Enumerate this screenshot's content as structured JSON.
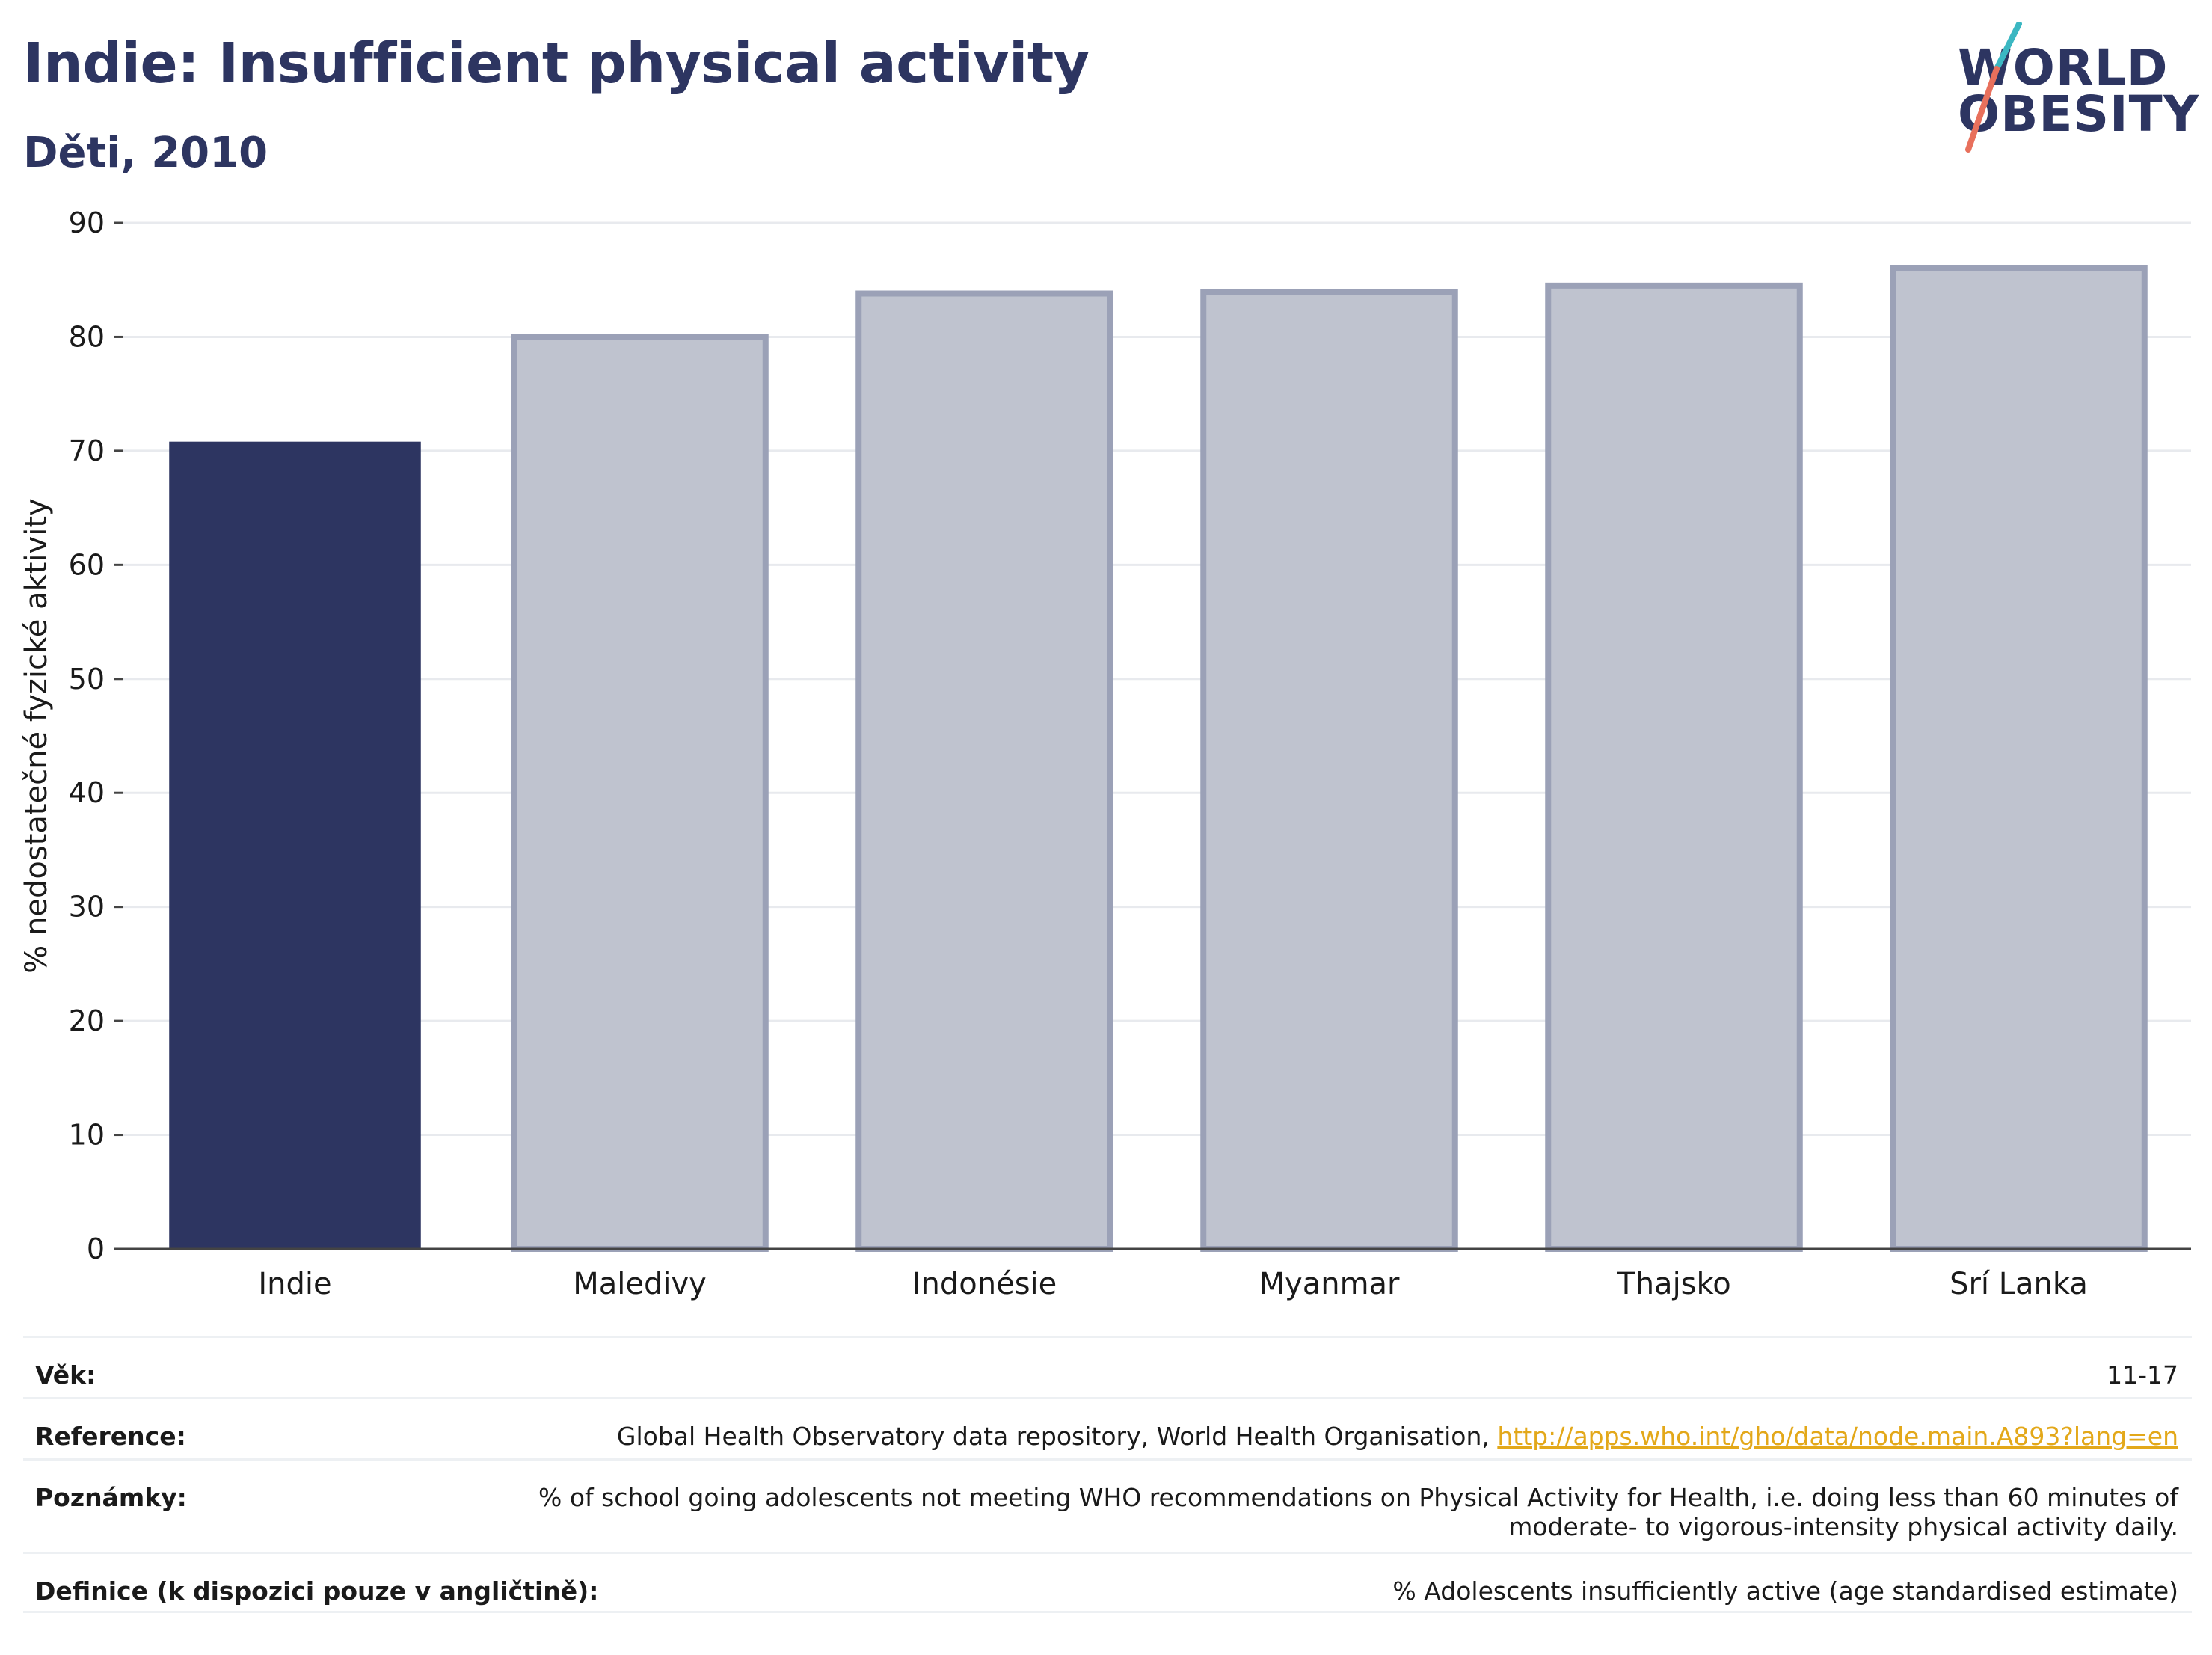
{
  "header": {
    "title": "Indie: Insufficient physical activity",
    "subtitle": "Děti, 2010"
  },
  "logo": {
    "line1": "WORLD",
    "line2": "OBESITY"
  },
  "chart_data": {
    "type": "bar",
    "categories": [
      "Indie",
      "Maledivy",
      "Indonésie",
      "Myanmar",
      "Thajsko",
      "Srí Lanka"
    ],
    "values": [
      70.8,
      80.0,
      83.8,
      83.9,
      84.5,
      86.0
    ],
    "highlight": "Indie",
    "ylabel": "% nedostatečné fyzické aktivity",
    "xlabel": "",
    "ylim": [
      0,
      90
    ],
    "yticks": [
      0,
      10,
      20,
      30,
      40,
      50,
      60,
      70,
      80,
      90
    ],
    "grid": true,
    "colors": {
      "highlight": "#2d3561",
      "other": "#bfc3cf",
      "other_border": "#9ba1b7"
    }
  },
  "info": {
    "age_label": "Věk:",
    "age_value": "11-17",
    "reference_label": "Reference:",
    "reference_text": "Global Health Observatory data repository, World Health Organisation, ",
    "reference_link": "http://apps.who.int/gho/data/node.main.A893?lang=en",
    "notes_label": "Poznámky:",
    "notes_line1": "% of school going adolescents not meeting WHO recommendations on Physical Activity for Health, i.e. doing less than 60 minutes of",
    "notes_line2": "moderate- to vigorous-intensity physical activity daily.",
    "definition_label": "Definice (k dispozici pouze v angličtině):",
    "definition_value": "% Adolescents insufficiently active (age standardised estimate)"
  }
}
